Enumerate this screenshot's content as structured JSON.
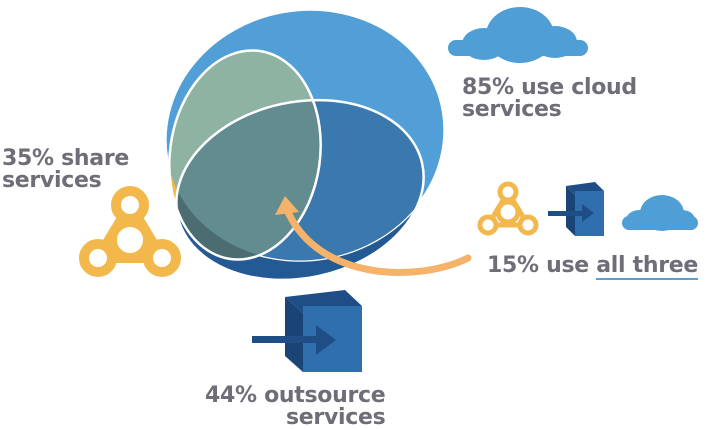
{
  "labels": {
    "cloud": {
      "line1": "85% use cloud",
      "line2": "services"
    },
    "share": {
      "line1": "35% share",
      "line2": "services"
    },
    "outsource": {
      "line1": "44% outsource",
      "line2": "services"
    },
    "all_three": {
      "prefix": "15% use ",
      "underlined": "all three"
    }
  },
  "icons": [
    "cloud-icon",
    "share-icon",
    "outsource-box-icon",
    "arrow-icon"
  ],
  "colors": {
    "cloud": "#4f9fd6",
    "share": "#f2b84b",
    "outsource": "#2f6fae",
    "outsource_dark": "#1f4e86",
    "arrow": "#f4b26a",
    "text": "#6e6e78",
    "underline": "#5b9fd2"
  }
}
